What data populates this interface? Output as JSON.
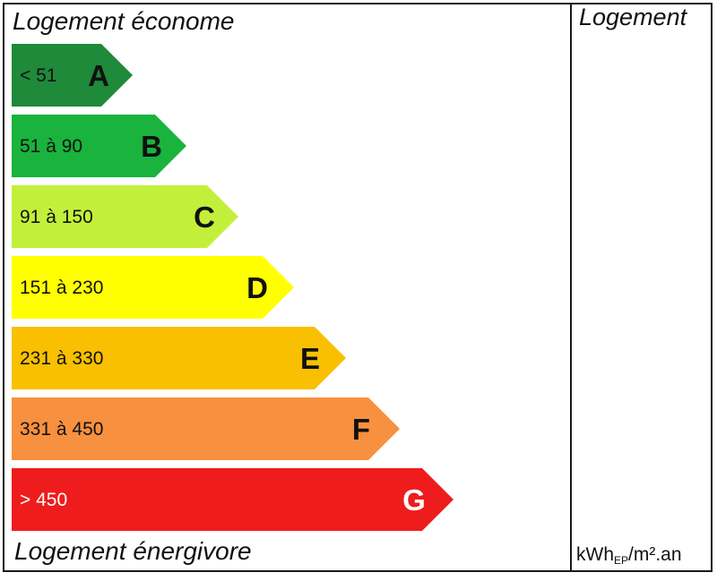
{
  "header": {
    "top_label": "Logement économe",
    "bottom_label": "Logement énergivore",
    "column_header": "Logement",
    "unit_main": "kWh",
    "unit_sub": "EP",
    "unit_tail": "/m².an"
  },
  "chart_data": {
    "type": "bar",
    "categories": [
      "A",
      "B",
      "C",
      "D",
      "E",
      "F",
      "G"
    ],
    "range_labels": [
      "< 51",
      "51 à 90",
      "91 à 150",
      "151 à 230",
      "231 à 330",
      "331 à 450",
      "> 450"
    ],
    "colors": [
      "#1e8a3a",
      "#19b33d",
      "#c2f03a",
      "#ffff00",
      "#f8c000",
      "#f7903f",
      "#ee1c1c"
    ],
    "letter_colors": [
      "#111111",
      "#111111",
      "#111111",
      "#111111",
      "#111111",
      "#111111",
      "#ffffff"
    ],
    "range_colors": [
      "#111111",
      "#111111",
      "#111111",
      "#111111",
      "#111111",
      "#111111",
      "#ffffff"
    ],
    "title": "",
    "xlabel": "",
    "ylabel": ""
  }
}
